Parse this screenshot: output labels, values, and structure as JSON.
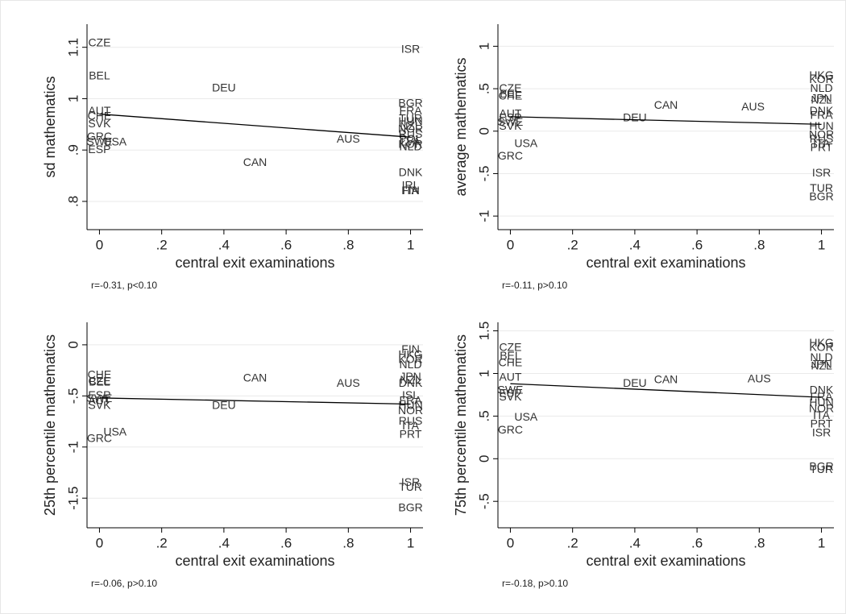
{
  "chart_data": [
    {
      "type": "scatter",
      "x_label": "central exit examinations",
      "y_label": "sd mathematics",
      "note": "r=-0.31, p<0.10",
      "xlim": [
        -0.04,
        1.04
      ],
      "ylim": [
        0.745,
        1.145
      ],
      "xticks": [
        0,
        {
          "value": 0.2,
          "label": ".2"
        },
        {
          "value": 0.4,
          "label": ".4"
        },
        {
          "value": 0.6,
          "label": ".6"
        },
        {
          "value": 0.8,
          "label": ".8"
        },
        1
      ],
      "yticks": [
        {
          "value": 0.8,
          "label": ".8"
        },
        {
          "value": 0.9,
          "label": ".9"
        },
        1,
        1.1
      ],
      "labels": [
        "CZE",
        "BEL",
        "AUT",
        "CHE",
        "SVK",
        "GRC",
        "SWE",
        "ESP",
        "USA",
        "DEU",
        "CAN",
        "AUS",
        "ISR",
        "BGR",
        "FRA",
        "TUR",
        "HUN",
        "NZL",
        "NOR",
        "RUS",
        "POL",
        "LVA",
        "KOR",
        "NLD",
        "DNK",
        "IRL",
        "FIN",
        "ITA"
      ],
      "x": [
        0,
        0,
        0,
        0,
        0,
        0,
        0,
        0,
        0.05,
        0.4,
        0.5,
        0.8,
        1,
        1,
        1,
        1,
        1,
        1,
        1,
        1,
        1,
        1,
        1,
        1,
        1,
        1,
        1,
        1
      ],
      "values": [
        1.108,
        1.043,
        0.975,
        0.965,
        0.95,
        0.925,
        0.915,
        0.9,
        0.915,
        1.02,
        0.875,
        0.92,
        1.095,
        0.99,
        0.975,
        0.96,
        0.955,
        0.945,
        0.94,
        0.93,
        0.92,
        0.915,
        0.91,
        0.905,
        0.855,
        0.83,
        0.82,
        0.82
      ],
      "fit": {
        "x": [
          0,
          1
        ],
        "values": [
          0.97,
          0.925
        ]
      }
    },
    {
      "type": "scatter",
      "x_label": "central exit examinations",
      "y_label": "average mathematics",
      "note": "r=-0.11, p>0.10",
      "xlim": [
        -0.04,
        1.04
      ],
      "ylim": [
        -1.16,
        1.26
      ],
      "xticks": [
        0,
        {
          "value": 0.2,
          "label": ".2"
        },
        {
          "value": 0.4,
          "label": ".4"
        },
        {
          "value": 0.6,
          "label": ".6"
        },
        {
          "value": 0.8,
          "label": ".8"
        },
        1
      ],
      "yticks": [
        -1,
        {
          "value": -0.5,
          "label": "-.5"
        },
        0,
        {
          "value": 0.5,
          "label": ".5"
        },
        1
      ],
      "labels": [
        "CZE",
        "BEL",
        "CHE",
        "AUT",
        "ESP",
        "SWE",
        "SVK",
        "USA",
        "GRC",
        "CAN",
        "DEU",
        "AUS",
        "HKG",
        "KOR",
        "NLD",
        "JPN",
        "NZL",
        "DNK",
        "FRA",
        "HUN",
        "NOR",
        "RUS",
        "ITA",
        "PRT",
        "ISR",
        "TUR",
        "BGR"
      ],
      "x": [
        0,
        0,
        0,
        0,
        0,
        0,
        0,
        0.05,
        0,
        0.5,
        0.4,
        0.78,
        1,
        1,
        1,
        1,
        1,
        1,
        1,
        1,
        1,
        1,
        1,
        1,
        1,
        1,
        1
      ],
      "values": [
        0.5,
        0.43,
        0.41,
        0.2,
        0.15,
        0.1,
        0.05,
        -0.15,
        -0.3,
        0.3,
        0.15,
        0.28,
        0.65,
        0.6,
        0.5,
        0.38,
        0.36,
        0.23,
        0.18,
        0.05,
        -0.05,
        -0.1,
        -0.15,
        -0.2,
        -0.5,
        -0.68,
        -0.78
      ],
      "fit": {
        "x": [
          0,
          1
        ],
        "values": [
          0.17,
          0.08
        ]
      }
    },
    {
      "type": "scatter",
      "x_label": "central exit examinations",
      "y_label": "25th percentile mathematics",
      "note": "r=-0.06, p>0.10",
      "xlim": [
        -0.04,
        1.04
      ],
      "ylim": [
        -1.79,
        0.22
      ],
      "xticks": [
        0,
        {
          "value": 0.2,
          "label": ".2"
        },
        {
          "value": 0.4,
          "label": ".4"
        },
        {
          "value": 0.6,
          "label": ".6"
        },
        {
          "value": 0.8,
          "label": ".8"
        },
        1
      ],
      "yticks": [
        -1.5,
        -1,
        {
          "value": -0.5,
          "label": "-.5"
        },
        0
      ],
      "labels": [
        "CHE",
        "CZE",
        "BEL",
        "ESP",
        "SWE",
        "AUT",
        "SVK",
        "GRC",
        "USA",
        "CAN",
        "AUS",
        "DEU",
        "FIN",
        "HKG",
        "KOR",
        "NLD",
        "JPN",
        "NZL",
        "DNK",
        "ISL",
        "FRA",
        "HUN",
        "NOR",
        "RUS",
        "ITA",
        "PRT",
        "ISR",
        "TUR",
        "BGR"
      ],
      "x": [
        0,
        0,
        0,
        0,
        0,
        0,
        0,
        0,
        0.05,
        0.5,
        0.8,
        0.4,
        1,
        1,
        1,
        1,
        1,
        1,
        1,
        1,
        1,
        1,
        1,
        1,
        1,
        1,
        1,
        1,
        1
      ],
      "values": [
        -0.3,
        -0.36,
        -0.37,
        -0.5,
        -0.53,
        -0.55,
        -0.6,
        -0.92,
        -0.86,
        -0.33,
        -0.38,
        -0.6,
        -0.05,
        -0.1,
        -0.15,
        -0.2,
        -0.32,
        -0.35,
        -0.38,
        -0.5,
        -0.55,
        -0.6,
        -0.65,
        -0.75,
        -0.8,
        -0.88,
        -1.35,
        -1.4,
        -1.6
      ],
      "fit": {
        "x": [
          0,
          1
        ],
        "values": [
          -0.52,
          -0.58
        ]
      }
    },
    {
      "type": "scatter",
      "x_label": "central exit examinations",
      "y_label": "75th percentile mathematics",
      "note": "r=-0.18, p>0.10",
      "xlim": [
        -0.04,
        1.04
      ],
      "ylim": [
        -0.81,
        1.6
      ],
      "xticks": [
        0,
        {
          "value": 0.2,
          "label": ".2"
        },
        {
          "value": 0.4,
          "label": ".4"
        },
        {
          "value": 0.6,
          "label": ".6"
        },
        {
          "value": 0.8,
          "label": ".8"
        },
        1
      ],
      "yticks": [
        {
          "value": -0.5,
          "label": "-.5"
        },
        0,
        {
          "value": 0.5,
          "label": ".5"
        },
        1,
        1.5
      ],
      "labels": [
        "CZE",
        "BEL",
        "CHE",
        "AUT",
        "SWE",
        "ESP",
        "SVK",
        "USA",
        "GRC",
        "DEU",
        "CAN",
        "AUS",
        "HKG",
        "KOR",
        "NLD",
        "JPN",
        "NZL",
        "DNK",
        "FRA",
        "HUN",
        "NOR",
        "ITA",
        "PRT",
        "ISR",
        "BGR",
        "TUR"
      ],
      "x": [
        0,
        0,
        0,
        0,
        0,
        0,
        0,
        0.05,
        0,
        0.4,
        0.5,
        0.8,
        1,
        1,
        1,
        1,
        1,
        1,
        1,
        1,
        1,
        1,
        1,
        1,
        1,
        1
      ],
      "values": [
        1.3,
        1.2,
        1.12,
        0.95,
        0.8,
        0.76,
        0.72,
        0.48,
        0.33,
        0.88,
        0.92,
        0.93,
        1.35,
        1.3,
        1.18,
        1.1,
        1.08,
        0.8,
        0.72,
        0.65,
        0.58,
        0.5,
        0.4,
        0.3,
        -0.1,
        -0.13
      ],
      "fit": {
        "x": [
          0,
          1
        ],
        "values": [
          0.88,
          0.72
        ]
      }
    }
  ]
}
